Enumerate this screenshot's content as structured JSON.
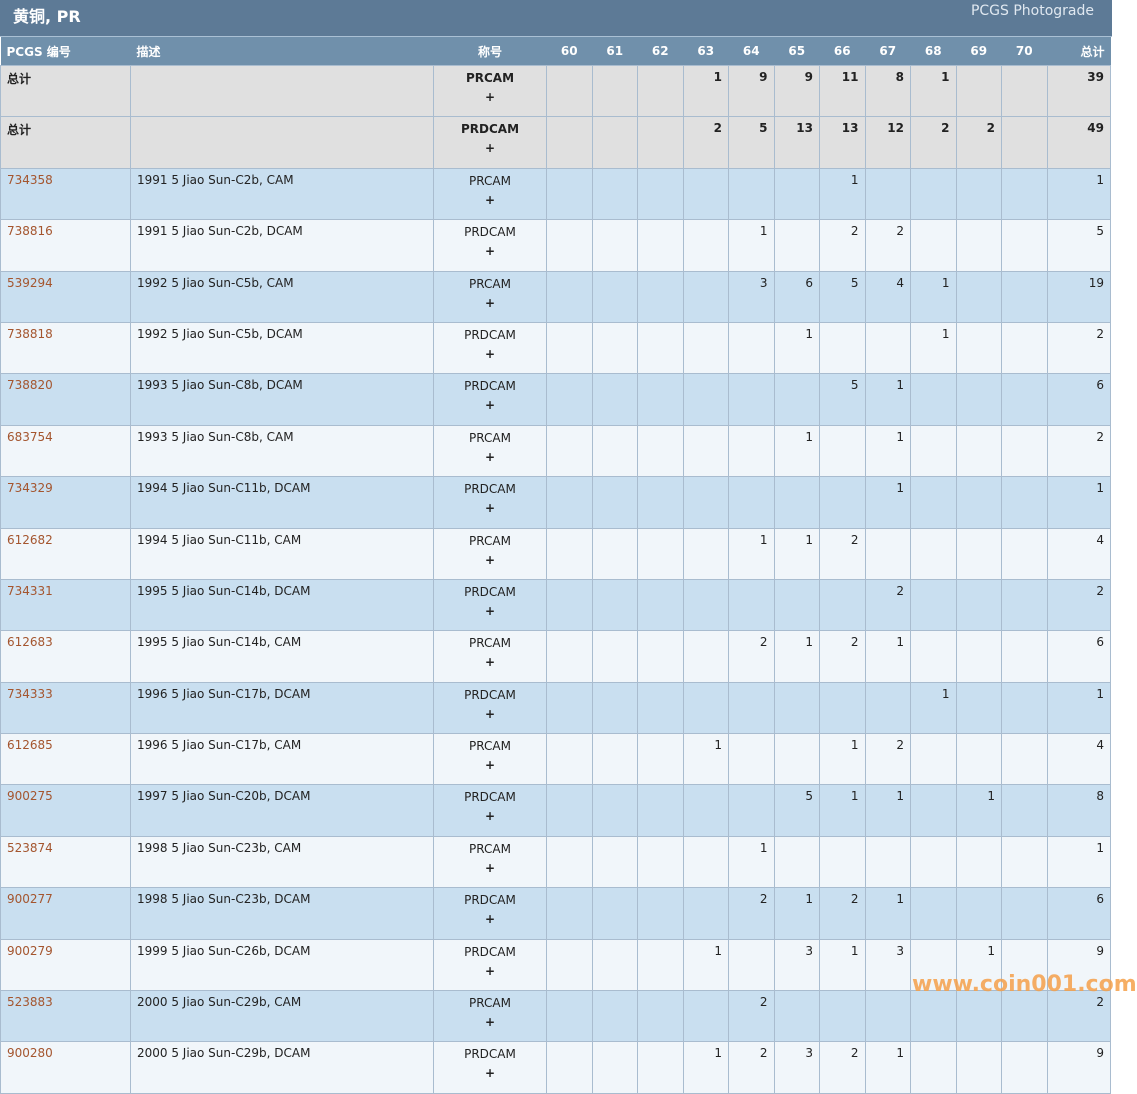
{
  "header": {
    "title": "黄铜, PR",
    "subtitle": "PCGS Photograde"
  },
  "columns": {
    "pcgs": "PCGS 编号",
    "desc": "描述",
    "designation": "称号",
    "grades": [
      "60",
      "61",
      "62",
      "63",
      "64",
      "65",
      "66",
      "67",
      "68",
      "69",
      "70"
    ],
    "total": "总计"
  },
  "totals": [
    {
      "label": "总计",
      "designation": "PRCAM",
      "plus": "+",
      "counts": [
        "",
        "",
        "",
        "1",
        "9",
        "9",
        "11",
        "8",
        "1",
        "",
        ""
      ],
      "total": "39"
    },
    {
      "label": "总计",
      "designation": "PRDCAM",
      "plus": "+",
      "counts": [
        "",
        "",
        "",
        "2",
        "5",
        "13",
        "13",
        "12",
        "2",
        "2",
        ""
      ],
      "total": "49"
    }
  ],
  "rows": [
    {
      "pcgs": "734358",
      "desc": "1991 5 Jiao Sun-C2b, CAM",
      "designation": "PRCAM",
      "plus": "+",
      "counts": [
        "",
        "",
        "",
        "",
        "",
        "",
        "1",
        "",
        "",
        "",
        ""
      ],
      "total": "1"
    },
    {
      "pcgs": "738816",
      "desc": "1991 5 Jiao Sun-C2b, DCAM",
      "designation": "PRDCAM",
      "plus": "+",
      "counts": [
        "",
        "",
        "",
        "",
        "1",
        "",
        "2",
        "2",
        "",
        "",
        ""
      ],
      "total": "5"
    },
    {
      "pcgs": "539294",
      "desc": "1992 5 Jiao Sun-C5b, CAM",
      "designation": "PRCAM",
      "plus": "+",
      "counts": [
        "",
        "",
        "",
        "",
        "3",
        "6",
        "5",
        "4",
        "1",
        "",
        ""
      ],
      "total": "19"
    },
    {
      "pcgs": "738818",
      "desc": "1992 5 Jiao Sun-C5b, DCAM",
      "designation": "PRDCAM",
      "plus": "+",
      "counts": [
        "",
        "",
        "",
        "",
        "",
        "1",
        "",
        "",
        "1",
        "",
        ""
      ],
      "total": "2"
    },
    {
      "pcgs": "738820",
      "desc": "1993 5 Jiao Sun-C8b, DCAM",
      "designation": "PRDCAM",
      "plus": "+",
      "counts": [
        "",
        "",
        "",
        "",
        "",
        "",
        "5",
        "1",
        "",
        "",
        ""
      ],
      "total": "6"
    },
    {
      "pcgs": "683754",
      "desc": "1993 5 Jiao Sun-C8b, CAM",
      "designation": "PRCAM",
      "plus": "+",
      "counts": [
        "",
        "",
        "",
        "",
        "",
        "1",
        "",
        "1",
        "",
        "",
        ""
      ],
      "total": "2"
    },
    {
      "pcgs": "734329",
      "desc": "1994 5 Jiao Sun-C11b, DCAM",
      "designation": "PRDCAM",
      "plus": "+",
      "counts": [
        "",
        "",
        "",
        "",
        "",
        "",
        "",
        "1",
        "",
        "",
        ""
      ],
      "total": "1"
    },
    {
      "pcgs": "612682",
      "desc": "1994 5 Jiao Sun-C11b, CAM",
      "designation": "PRCAM",
      "plus": "+",
      "counts": [
        "",
        "",
        "",
        "",
        "1",
        "1",
        "2",
        "",
        "",
        "",
        ""
      ],
      "total": "4"
    },
    {
      "pcgs": "734331",
      "desc": "1995 5 Jiao Sun-C14b, DCAM",
      "designation": "PRDCAM",
      "plus": "+",
      "counts": [
        "",
        "",
        "",
        "",
        "",
        "",
        "",
        "2",
        "",
        "",
        ""
      ],
      "total": "2"
    },
    {
      "pcgs": "612683",
      "desc": "1995 5 Jiao Sun-C14b, CAM",
      "designation": "PRCAM",
      "plus": "+",
      "counts": [
        "",
        "",
        "",
        "",
        "2",
        "1",
        "2",
        "1",
        "",
        "",
        ""
      ],
      "total": "6"
    },
    {
      "pcgs": "734333",
      "desc": "1996 5 Jiao Sun-C17b, DCAM",
      "designation": "PRDCAM",
      "plus": "+",
      "counts": [
        "",
        "",
        "",
        "",
        "",
        "",
        "",
        "",
        "1",
        "",
        ""
      ],
      "total": "1"
    },
    {
      "pcgs": "612685",
      "desc": "1996 5 Jiao Sun-C17b, CAM",
      "designation": "PRCAM",
      "plus": "+",
      "counts": [
        "",
        "",
        "",
        "1",
        "",
        "",
        "1",
        "2",
        "",
        "",
        ""
      ],
      "total": "4"
    },
    {
      "pcgs": "900275",
      "desc": "1997 5 Jiao Sun-C20b, DCAM",
      "designation": "PRDCAM",
      "plus": "+",
      "counts": [
        "",
        "",
        "",
        "",
        "",
        "5",
        "1",
        "1",
        "",
        "1",
        ""
      ],
      "total": "8"
    },
    {
      "pcgs": "523874",
      "desc": "1998 5 Jiao Sun-C23b, CAM",
      "designation": "PRCAM",
      "plus": "+",
      "counts": [
        "",
        "",
        "",
        "",
        "1",
        "",
        "",
        "",
        "",
        "",
        ""
      ],
      "total": "1"
    },
    {
      "pcgs": "900277",
      "desc": "1998 5 Jiao Sun-C23b, DCAM",
      "designation": "PRDCAM",
      "plus": "+",
      "counts": [
        "",
        "",
        "",
        "",
        "2",
        "1",
        "2",
        "1",
        "",
        "",
        ""
      ],
      "total": "6"
    },
    {
      "pcgs": "900279",
      "desc": "1999 5 Jiao Sun-C26b, DCAM",
      "designation": "PRDCAM",
      "plus": "+",
      "counts": [
        "",
        "",
        "",
        "1",
        "",
        "3",
        "1",
        "3",
        "",
        "1",
        ""
      ],
      "total": "9"
    },
    {
      "pcgs": "523883",
      "desc": "2000 5 Jiao Sun-C29b, CAM",
      "designation": "PRCAM",
      "plus": "+",
      "counts": [
        "",
        "",
        "",
        "",
        "2",
        "",
        "",
        "",
        "",
        "",
        ""
      ],
      "total": "2"
    },
    {
      "pcgs": "900280",
      "desc": "2000 5 Jiao Sun-C29b, DCAM",
      "designation": "PRDCAM",
      "plus": "+",
      "counts": [
        "",
        "",
        "",
        "1",
        "2",
        "3",
        "2",
        "1",
        "",
        "",
        ""
      ],
      "total": "9"
    }
  ],
  "watermark": "www.coin001.com"
}
